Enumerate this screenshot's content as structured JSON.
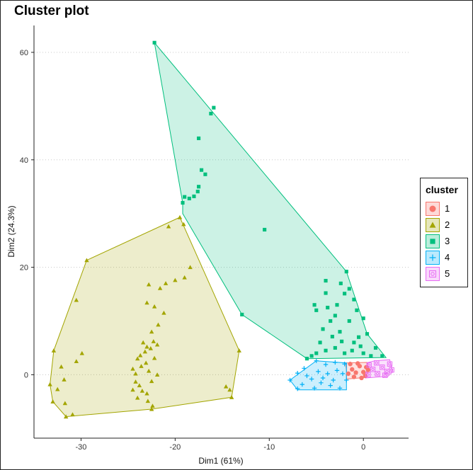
{
  "title": "Cluster plot",
  "chart_data": {
    "type": "scatter",
    "title": "Cluster plot",
    "xlabel": "Dim1 (61%)",
    "ylabel": "Dim2 (24.3%)",
    "xlim": [
      -35,
      4.8
    ],
    "ylim": [
      -11.8,
      65
    ],
    "x_ticks": [
      -30,
      -20,
      -10,
      0
    ],
    "y_ticks": [
      0,
      20,
      40,
      60
    ],
    "x_tick_labels": [
      "-30",
      "-20",
      "-10",
      "0"
    ],
    "y_tick_labels": [
      "0",
      "20",
      "40",
      "60"
    ],
    "grid": "horizontal dotted",
    "legend_title": "cluster",
    "legend_position": "right",
    "series": [
      {
        "name": "1",
        "shape": "circle",
        "color": "#F8766D",
        "fill": "#F8766D",
        "hull": [
          [
            -1.8,
            -0.8
          ],
          [
            0.3,
            -0.5
          ],
          [
            0.6,
            1.2
          ],
          [
            0.4,
            2.3
          ],
          [
            -1.9,
            2.2
          ],
          [
            -1.8,
            0.8
          ]
        ],
        "points": [
          [
            -1.6,
            0.2
          ],
          [
            -1.2,
            1.0
          ],
          [
            -0.8,
            0.4
          ],
          [
            -0.4,
            1.6
          ],
          [
            0.0,
            0.5
          ],
          [
            0.3,
            1.4
          ],
          [
            -1.4,
            2.0
          ],
          [
            -0.6,
            2.1
          ],
          [
            0.2,
            -0.2
          ],
          [
            -1.0,
            -0.4
          ],
          [
            -0.2,
            -0.6
          ],
          [
            0.5,
            0.9
          ]
        ]
      },
      {
        "name": "2",
        "shape": "triangle",
        "color": "#A3A500",
        "fill": "#A3A500",
        "hull": [
          [
            -19.5,
            29.3
          ],
          [
            -29.4,
            21.3
          ],
          [
            -32.9,
            4.5
          ],
          [
            -33.3,
            -1.8
          ],
          [
            -33.0,
            -5.0
          ],
          [
            -31.6,
            -7.8
          ],
          [
            -22.5,
            -6.4
          ],
          [
            -14.0,
            -4.2
          ],
          [
            -13.2,
            4.5
          ]
        ],
        "points": [
          [
            -19.5,
            29.3
          ],
          [
            -29.4,
            21.3
          ],
          [
            -32.9,
            4.5
          ],
          [
            -33.3,
            -1.8
          ],
          [
            -33.0,
            -5.0
          ],
          [
            -31.6,
            -7.8
          ],
          [
            -22.5,
            -6.4
          ],
          [
            -14.0,
            -4.2
          ],
          [
            -13.2,
            4.5
          ],
          [
            -20.7,
            27.6
          ],
          [
            -19.1,
            28.0
          ],
          [
            -18.4,
            20.0
          ],
          [
            -19.0,
            18.1
          ],
          [
            -20.0,
            17.6
          ],
          [
            -21.0,
            17.0
          ],
          [
            -21.6,
            16.1
          ],
          [
            -22.8,
            16.8
          ],
          [
            -23.0,
            13.4
          ],
          [
            -22.2,
            12.7
          ],
          [
            -21.2,
            11.5
          ],
          [
            -21.8,
            9.3
          ],
          [
            -22.5,
            8.0
          ],
          [
            -22.3,
            6.2
          ],
          [
            -23.4,
            6.0
          ],
          [
            -23.2,
            4.3
          ],
          [
            -24.0,
            3.0
          ],
          [
            -23.6,
            1.6
          ],
          [
            -24.2,
            0.2
          ],
          [
            -22.8,
            0.7
          ],
          [
            -22.5,
            -1.2
          ],
          [
            -23.8,
            -2.0
          ],
          [
            -24.5,
            -2.8
          ],
          [
            -23.0,
            -3.5
          ],
          [
            -22.9,
            -4.9
          ],
          [
            -24.0,
            -4.3
          ],
          [
            -22.4,
            -5.8
          ],
          [
            -23.1,
            2.2
          ],
          [
            -22.2,
            3.1
          ],
          [
            -21.9,
            0.0
          ],
          [
            -24.5,
            1.1
          ],
          [
            -30.5,
            13.9
          ],
          [
            -32.1,
            1.5
          ],
          [
            -31.8,
            -0.9
          ],
          [
            -30.5,
            2.5
          ],
          [
            -29.9,
            4.0
          ],
          [
            -32.5,
            -2.7
          ],
          [
            -31.7,
            -5.3
          ],
          [
            -14.6,
            -2.2
          ],
          [
            -14.2,
            -2.8
          ],
          [
            -30.9,
            -7.4
          ],
          [
            -24.2,
            -1.3
          ],
          [
            -23.5,
            -3.0
          ],
          [
            -23.7,
            3.6
          ],
          [
            -22.6,
            4.9
          ],
          [
            -21.9,
            5.6
          ],
          [
            -23.0,
            5.2
          ]
        ]
      },
      {
        "name": "3",
        "shape": "square",
        "color": "#00BA38",
        "fill": "#00BF7D",
        "hull": [
          [
            -22.2,
            61.8
          ],
          [
            -1.8,
            19.2
          ],
          [
            0.4,
            7.6
          ],
          [
            2.4,
            3.2
          ],
          [
            -6.0,
            3.0
          ],
          [
            -12.9,
            11.2
          ],
          [
            -19.2,
            30.0
          ],
          [
            -19.2,
            32.0
          ]
        ],
        "points": [
          [
            -22.2,
            61.8
          ],
          [
            -16.2,
            48.6
          ],
          [
            -15.9,
            49.7
          ],
          [
            -17.5,
            44.0
          ],
          [
            -17.2,
            38.1
          ],
          [
            -16.8,
            37.3
          ],
          [
            -17.5,
            35.0
          ],
          [
            -17.6,
            34.1
          ],
          [
            -18.0,
            33.2
          ],
          [
            -18.5,
            32.8
          ],
          [
            -19.0,
            33.1
          ],
          [
            -19.2,
            32.0
          ],
          [
            -10.5,
            27.0
          ],
          [
            -12.9,
            11.2
          ],
          [
            -1.8,
            19.2
          ],
          [
            -1.0,
            14.0
          ],
          [
            -0.7,
            12.0
          ],
          [
            0.0,
            10.5
          ],
          [
            -2.0,
            15.1
          ],
          [
            -3.0,
            11.0
          ],
          [
            -4.0,
            15.2
          ],
          [
            -5.0,
            12.0
          ],
          [
            -5.2,
            13.0
          ],
          [
            -4.3,
            8.5
          ],
          [
            -3.5,
            10.0
          ],
          [
            -2.5,
            8.0
          ],
          [
            -1.5,
            10.0
          ],
          [
            -0.5,
            7.0
          ],
          [
            -1.0,
            6.0
          ],
          [
            0.4,
            7.6
          ],
          [
            1.3,
            5.0
          ],
          [
            2.0,
            3.5
          ],
          [
            -2.0,
            4.0
          ],
          [
            -3.0,
            5.0
          ],
          [
            -4.0,
            4.5
          ],
          [
            -5.0,
            4.0
          ],
          [
            -5.5,
            3.5
          ],
          [
            -6.0,
            3.0
          ],
          [
            -4.6,
            6.0
          ],
          [
            -3.3,
            7.1
          ],
          [
            -2.3,
            6.2
          ],
          [
            -1.2,
            4.5
          ],
          [
            0.0,
            4.0
          ],
          [
            0.8,
            3.5
          ],
          [
            -0.3,
            5.3
          ],
          [
            -2.8,
            13.0
          ],
          [
            -3.8,
            12.5
          ],
          [
            -1.5,
            16.0
          ],
          [
            -2.4,
            17.0
          ],
          [
            -4.0,
            17.5
          ]
        ]
      },
      {
        "name": "4",
        "shape": "plus",
        "color": "#00B0F6",
        "fill": "#00B0F6",
        "hull": [
          [
            -7.8,
            -1.0
          ],
          [
            -5.0,
            2.6
          ],
          [
            -1.8,
            2.2
          ],
          [
            -1.8,
            -2.8
          ],
          [
            -7.0,
            -2.8
          ]
        ],
        "points": [
          [
            -7.8,
            -1.0
          ],
          [
            -7.0,
            0.3
          ],
          [
            -6.3,
            1.2
          ],
          [
            -5.0,
            2.6
          ],
          [
            -4.0,
            1.9
          ],
          [
            -3.0,
            2.3
          ],
          [
            -2.0,
            2.0
          ],
          [
            -1.8,
            -1.0
          ],
          [
            -2.5,
            -2.5
          ],
          [
            -3.5,
            -2.0
          ],
          [
            -4.5,
            -1.5
          ],
          [
            -5.5,
            -0.8
          ],
          [
            -6.5,
            -1.8
          ],
          [
            -7.0,
            -2.6
          ],
          [
            -3.8,
            0.2
          ],
          [
            -2.8,
            0.8
          ],
          [
            -4.8,
            0.6
          ],
          [
            -6.0,
            -0.2
          ],
          [
            -5.2,
            -2.5
          ],
          [
            -3.2,
            -1.0
          ],
          [
            -2.2,
            0.2
          ],
          [
            -4.3,
            -0.6
          ]
        ]
      },
      {
        "name": "5",
        "shape": "square-target",
        "color": "#E76BF3",
        "fill": "#E76BF3",
        "hull": [
          [
            0.2,
            -0.6
          ],
          [
            2.6,
            -0.3
          ],
          [
            3.1,
            0.5
          ],
          [
            2.8,
            2.8
          ],
          [
            1.2,
            2.6
          ],
          [
            0.5,
            2.3
          ]
        ],
        "points": [
          [
            0.5,
            0.0
          ],
          [
            1.0,
            1.0
          ],
          [
            1.5,
            0.2
          ],
          [
            2.0,
            1.4
          ],
          [
            2.5,
            0.6
          ],
          [
            2.8,
            2.0
          ],
          [
            1.4,
            2.2
          ],
          [
            0.6,
            1.8
          ],
          [
            2.3,
            -0.1
          ],
          [
            3.0,
            0.9
          ]
        ]
      }
    ]
  }
}
